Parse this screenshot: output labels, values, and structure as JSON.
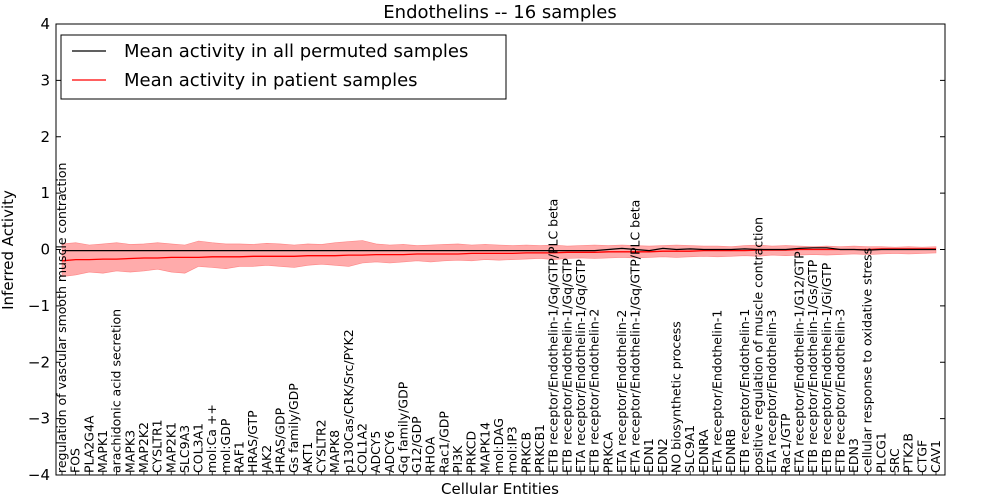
{
  "chart_data": {
    "type": "line",
    "title": "Endothelins -- 16 samples",
    "xlabel": "Cellular Entities",
    "ylabel": "Inferred Activity",
    "ylim": [
      -4,
      4
    ],
    "yticks": [
      4,
      3,
      2,
      1,
      0,
      -1,
      -2,
      -3,
      -4
    ],
    "legend_position": "top-left",
    "legend": [
      {
        "label": "Mean activity in all permuted samples",
        "color": "#000000"
      },
      {
        "label": "Mean activity in patient samples",
        "color": "#ff0000"
      }
    ],
    "series_colors": {
      "permuted": "#000000",
      "patient": "#ff0000",
      "band": "#ff6666"
    },
    "entities": [
      "regulation of vascular smooth muscle contraction",
      "FOS",
      "PLA2G4A",
      "MAPK1",
      "arachidonic acid secretion",
      "MAPK3",
      "MAP2K2",
      "CYSLTR1",
      "MAP2K1",
      "SLC9A3",
      "COL3A1",
      "mol:Ca ++",
      "mol:GDP",
      "RAF1",
      "HRAS/GTP",
      "JAK2",
      "HRAS/GDP",
      "Gs family/GDP",
      "AKT1",
      "CYSLTR2",
      "MAPK8",
      "p130Cas/CRK/Src/PYK2",
      "COL1A2",
      "ADCY5",
      "ADCY6",
      "Gq family/GDP",
      "G12/GDP",
      "RHOA",
      "Rac1/GDP",
      "PI3K",
      "PRKCD",
      "MAPK14",
      "mol:DAG",
      "mol:IP3",
      "PRKCB",
      "PRKCB1",
      "ETB receptor/Endothelin-1/Gq/GTP/PLC beta",
      "ETB receptor/Endothelin-1/Gq/GTP",
      "ETA receptor/Endothelin-1/Gq/GTP",
      "ETB receptor/Endothelin-2",
      "PRKCA",
      "ETA receptor/Endothelin-2",
      "ETA receptor/Endothelin-1/Gq/GTP/PLC beta",
      "EDN1",
      "EDN2",
      "NO biosynthetic process",
      "SLC9A1",
      "EDNRA",
      "ETA receptor/Endothelin-1",
      "EDNRB",
      "ETB receptor/Endothelin-1",
      "positive regulation of muscle contraction",
      "ETA receptor/Endothelin-3",
      "Rac1/GTP",
      "ETA receptor/Endothelin-1/G12/GTP",
      "ETB receptor/Endothelin-1/Gs/GTP",
      "ETB receptor/Endothelin-1/Gi/GTP",
      "ETB receptor/Endothelin-3",
      "EDN3",
      "cellular response to oxidative stress",
      "PLCG1",
      "SRC",
      "PTK2B",
      "CTGF",
      "CAV1"
    ],
    "patient_mean": [
      -0.2,
      -0.18,
      -0.18,
      -0.17,
      -0.17,
      -0.16,
      -0.15,
      -0.15,
      -0.14,
      -0.14,
      -0.14,
      -0.13,
      -0.13,
      -0.13,
      -0.12,
      -0.12,
      -0.12,
      -0.12,
      -0.11,
      -0.11,
      -0.11,
      -0.1,
      -0.1,
      -0.09,
      -0.09,
      -0.09,
      -0.08,
      -0.08,
      -0.08,
      -0.08,
      -0.07,
      -0.07,
      -0.07,
      -0.07,
      -0.06,
      -0.06,
      -0.06,
      -0.05,
      -0.05,
      -0.05,
      -0.04,
      -0.04,
      -0.04,
      -0.04,
      -0.03,
      -0.03,
      -0.03,
      -0.02,
      -0.02,
      -0.02,
      -0.02,
      -0.01,
      -0.01,
      -0.01,
      0.0,
      0.0,
      0.0,
      0.0,
      0.0,
      0.0,
      0.01,
      0.01,
      0.01,
      0.01,
      0.01
    ],
    "patient_upper": [
      0.1,
      0.12,
      0.08,
      0.1,
      0.12,
      0.09,
      0.1,
      0.12,
      0.1,
      0.08,
      0.15,
      0.12,
      0.1,
      0.1,
      0.09,
      0.11,
      0.1,
      0.08,
      0.1,
      0.09,
      0.12,
      0.14,
      0.16,
      0.1,
      0.08,
      0.09,
      0.07,
      0.08,
      0.09,
      0.1,
      0.08,
      0.09,
      0.08,
      0.07,
      0.08,
      0.07,
      0.08,
      0.06,
      0.07,
      0.08,
      0.07,
      0.08,
      0.07,
      0.06,
      0.07,
      0.08,
      0.07,
      0.06,
      0.06,
      0.05,
      0.07,
      0.08,
      0.06,
      0.07,
      0.06,
      0.05,
      0.06,
      0.05,
      0.06,
      0.05,
      0.05,
      0.04,
      0.05,
      0.04,
      0.05
    ],
    "patient_lower": [
      -0.48,
      -0.45,
      -0.4,
      -0.42,
      -0.38,
      -0.4,
      -0.38,
      -0.35,
      -0.4,
      -0.42,
      -0.3,
      -0.32,
      -0.34,
      -0.3,
      -0.3,
      -0.28,
      -0.3,
      -0.32,
      -0.28,
      -0.26,
      -0.28,
      -0.3,
      -0.24,
      -0.22,
      -0.24,
      -0.22,
      -0.2,
      -0.22,
      -0.2,
      -0.19,
      -0.2,
      -0.18,
      -0.19,
      -0.18,
      -0.17,
      -0.16,
      -0.18,
      -0.16,
      -0.15,
      -0.16,
      -0.15,
      -0.14,
      -0.15,
      -0.14,
      -0.13,
      -0.14,
      -0.13,
      -0.12,
      -0.13,
      -0.12,
      -0.11,
      -0.12,
      -0.1,
      -0.11,
      -0.1,
      -0.09,
      -0.1,
      -0.09,
      -0.08,
      -0.09,
      -0.08,
      -0.07,
      -0.08,
      -0.07,
      -0.06
    ],
    "permuted_mean": [
      -0.02,
      -0.02,
      -0.02,
      -0.02,
      -0.02,
      -0.02,
      -0.02,
      -0.02,
      -0.02,
      -0.02,
      -0.02,
      -0.02,
      -0.02,
      -0.02,
      -0.02,
      -0.02,
      -0.02,
      -0.02,
      -0.02,
      -0.02,
      -0.02,
      -0.02,
      -0.02,
      -0.02,
      -0.02,
      -0.02,
      -0.02,
      -0.02,
      -0.02,
      -0.02,
      -0.02,
      -0.02,
      -0.02,
      -0.02,
      -0.02,
      -0.02,
      -0.02,
      -0.02,
      -0.02,
      -0.02,
      0.0,
      0.02,
      0.0,
      -0.02,
      0.02,
      0.0,
      0.01,
      0.0,
      0.0,
      0.0,
      0.01,
      0.0,
      0.0,
      0.0,
      0.02,
      0.03,
      0.03,
      0.0,
      0.0,
      -0.01,
      0.0,
      0.0,
      0.0,
      0.0,
      0.0
    ]
  }
}
